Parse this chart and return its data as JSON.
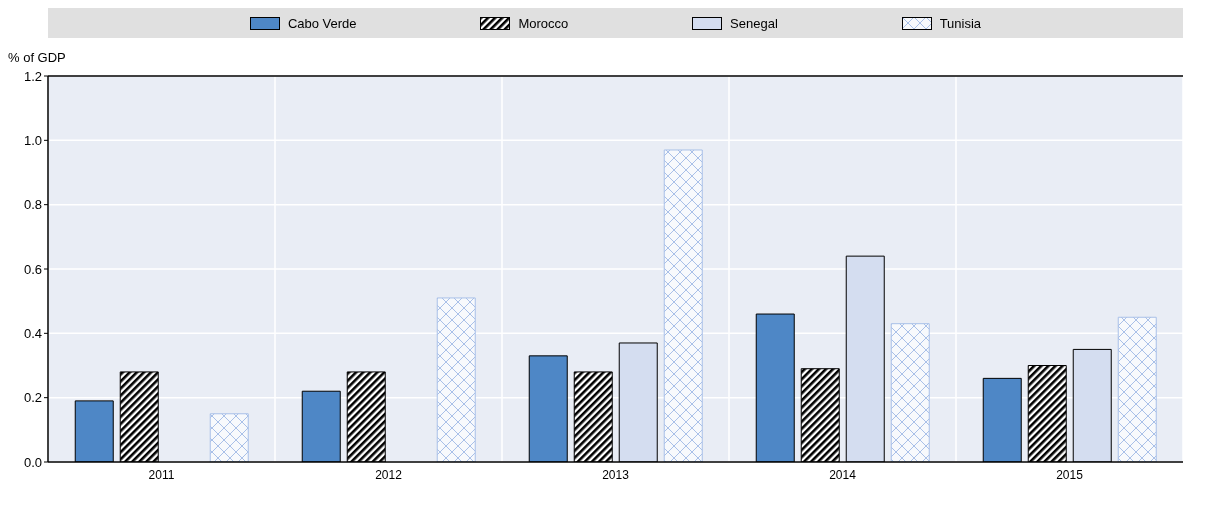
{
  "chart_data": {
    "type": "bar",
    "ylabel": "% of GDP",
    "categories": [
      "2011",
      "2012",
      "2013",
      "2014",
      "2015"
    ],
    "series": [
      {
        "name": "Cabo Verde",
        "color": "#4e87c6",
        "values": [
          0.19,
          0.22,
          0.33,
          0.46,
          0.26
        ]
      },
      {
        "name": "Morocco",
        "color": "#000000",
        "values": [
          0.28,
          0.28,
          0.28,
          0.29,
          0.3
        ]
      },
      {
        "name": "Senegal",
        "color": "#d4ddf0",
        "values": [
          null,
          null,
          0.37,
          0.64,
          0.35
        ]
      },
      {
        "name": "Tunisia",
        "color": "#a9c0e8",
        "values": [
          0.15,
          0.51,
          0.97,
          0.43,
          0.45
        ]
      }
    ],
    "ylim": [
      0,
      1.2
    ],
    "yticks": [
      {
        "value": 0,
        "label": "0.0"
      },
      {
        "value": 0.2,
        "label": "0.2"
      },
      {
        "value": 0.4,
        "label": "0.4"
      },
      {
        "value": 0.6,
        "label": "0.6"
      },
      {
        "value": 0.8,
        "label": "0.8"
      },
      {
        "value": 1,
        "label": "1.0"
      },
      {
        "value": 1.2,
        "label": "1.2"
      }
    ],
    "grid": true,
    "legend": "top"
  }
}
